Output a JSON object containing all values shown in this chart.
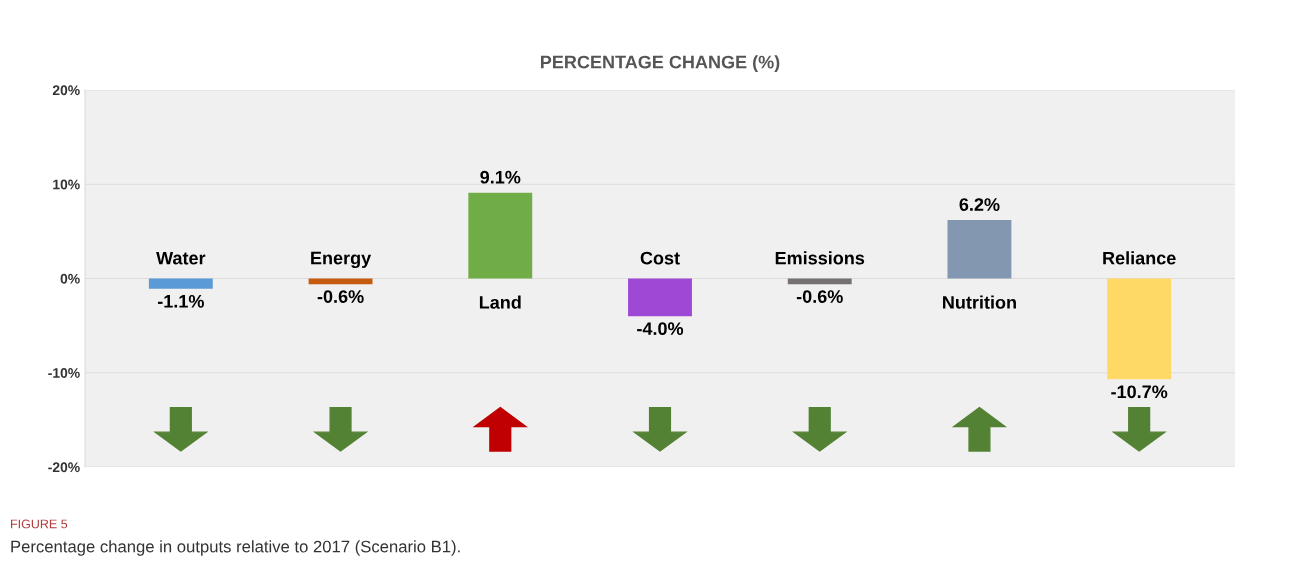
{
  "chart_data": {
    "type": "bar",
    "title": "PERCENTAGE CHANGE (%)",
    "categories": [
      "Water",
      "Energy",
      "Land",
      "Cost",
      "Emissions",
      "Nutrition",
      "Reliance"
    ],
    "values": [
      -1.1,
      -0.6,
      9.1,
      -4.0,
      -0.6,
      6.2,
      -10.7
    ],
    "colors": [
      "#5b9bd5",
      "#c55a11",
      "#70ad47",
      "#9e48d6",
      "#767171",
      "#8497b0",
      "#ffd966"
    ],
    "value_labels": [
      "-1.1%",
      "-0.6%",
      "9.1%",
      "-4.0%",
      "-0.6%",
      "6.2%",
      "-10.7%"
    ],
    "ylim": [
      -20,
      20
    ],
    "yticks": [
      {
        "value": -20,
        "label": "-20%"
      },
      {
        "value": -10,
        "label": "-10%"
      },
      {
        "value": 0,
        "label": "0%"
      },
      {
        "value": 10,
        "label": "10%"
      },
      {
        "value": 20,
        "label": "20%"
      }
    ],
    "grid": "y",
    "annotations": [
      "FIGURE 5",
      "Percentage change in outputs relative to 2017 (Scenario B1)."
    ]
  }
}
